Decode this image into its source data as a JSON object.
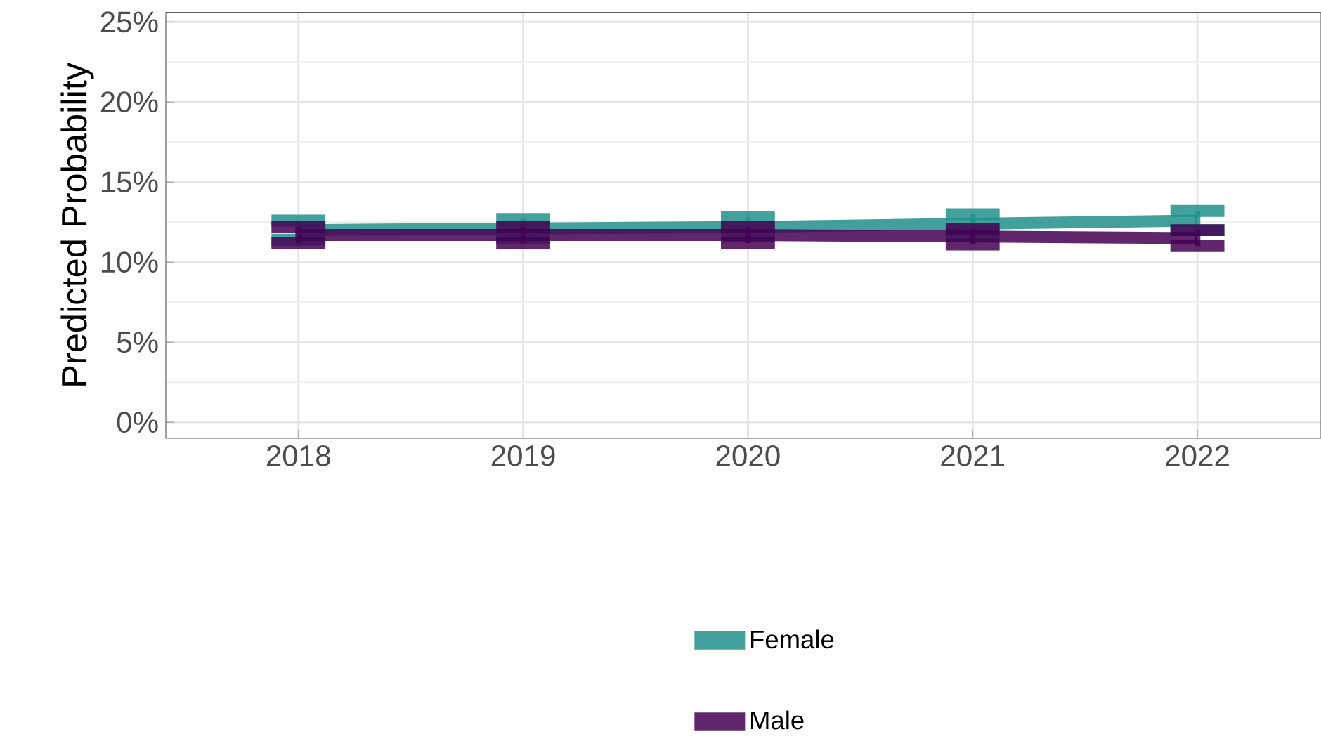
{
  "chart_data": {
    "type": "line",
    "ylabel": "Predicted Probability",
    "x": [
      2018,
      2019,
      2020,
      2021,
      2022
    ],
    "xlim": [
      2017.41,
      2022.55
    ],
    "xticks": [
      2018,
      2019,
      2020,
      2021,
      2022
    ],
    "ylim": [
      -1,
      25.6
    ],
    "yticks": [
      {
        "value": 0,
        "label": "0%"
      },
      {
        "value": 5,
        "label": "5%"
      },
      {
        "value": 10,
        "label": "10%"
      },
      {
        "value": 15,
        "label": "15%"
      },
      {
        "value": 20,
        "label": "20%"
      },
      {
        "value": 25,
        "label": "25%"
      }
    ],
    "grid": true,
    "legend": "bottom",
    "marker": "none",
    "line_style": "solid",
    "series": [
      {
        "name": "Female",
        "color": "#21908c",
        "values": [
          12.0,
          12.1,
          12.2,
          12.4,
          12.6
        ],
        "errors": [
          0.6,
          0.6,
          0.6,
          0.6,
          0.6
        ]
      },
      {
        "name": "Male",
        "color": "#440154",
        "values": [
          11.7,
          11.7,
          11.7,
          11.6,
          11.5
        ],
        "errors": [
          0.5,
          0.5,
          0.5,
          0.5,
          0.5
        ]
      }
    ]
  }
}
